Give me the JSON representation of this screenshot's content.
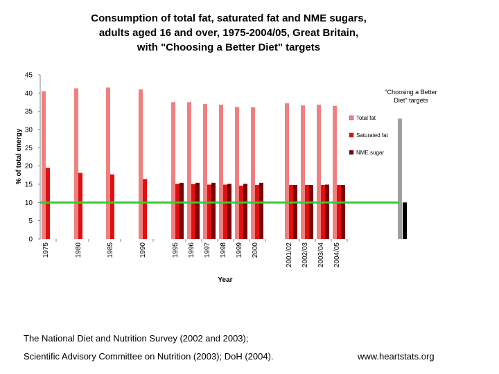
{
  "chart_data": {
    "type": "bar",
    "title_lines": [
      "Consumption of total fat, saturated fat and NME sugars,",
      "adults aged 16 and over, 1975-2004/05, Great Britain,",
      "with \"Choosing a Better Diet\" targets"
    ],
    "xlabel": "Year",
    "ylabel": "% of total energy",
    "ylim": [
      0,
      45
    ],
    "yticks": [
      0,
      5,
      10,
      15,
      20,
      25,
      30,
      35,
      40,
      45
    ],
    "categories": [
      "1975",
      "1980",
      "1985",
      "1990",
      "1995",
      "1996",
      "1997",
      "1998",
      "1999",
      "2000",
      "2001/02",
      "2002/03",
      "2003/04",
      "2004/05"
    ],
    "series": [
      {
        "name": "Total fat",
        "color": "#f08080",
        "values": [
          40.5,
          41.3,
          41.5,
          41.0,
          37.5,
          37.5,
          37.0,
          36.8,
          36.2,
          36.1,
          37.2,
          36.6,
          36.8,
          36.5
        ]
      },
      {
        "name": "Saturated fat",
        "color": "#e01010",
        "values": [
          19.5,
          18.1,
          17.7,
          16.4,
          15.1,
          15.0,
          14.9,
          14.9,
          14.6,
          14.8,
          14.8,
          14.8,
          14.8,
          14.8
        ]
      },
      {
        "name": "NME sugar",
        "color": "#7a0000",
        "values": [
          null,
          null,
          null,
          null,
          15.4,
          15.4,
          15.4,
          15.1,
          15.1,
          15.4,
          14.8,
          14.8,
          14.9,
          14.8
        ]
      }
    ],
    "targets": {
      "label": "\"Choosing a Better Diet\" targets",
      "values": [
        {
          "name": "Total fat target",
          "value": 33,
          "color": "#a0a0a0"
        },
        {
          "name": "NME sugar target",
          "value": 10,
          "color": "#000000"
        }
      ]
    },
    "reference_line": {
      "value": 10,
      "color": "#33cc33"
    }
  },
  "source": {
    "line1": "The National Diet and Nutrition Survey (2002 and 2003);",
    "line2": "Scientific Advisory Committee on Nutrition (2003); DoH (2004).",
    "website": "www.heartstats.org"
  }
}
